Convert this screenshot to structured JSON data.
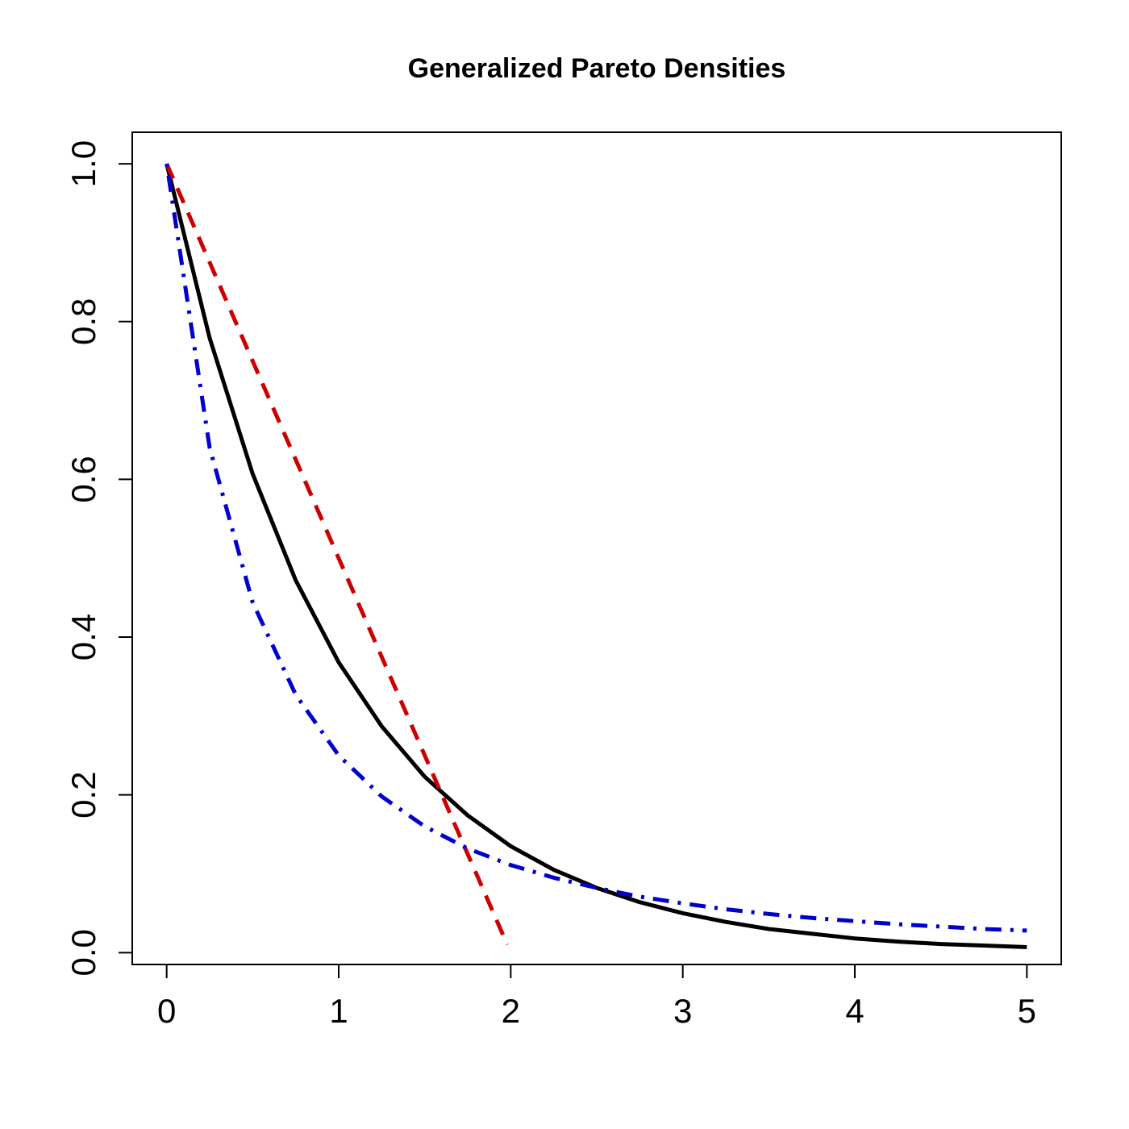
{
  "chart_data": {
    "type": "line",
    "title": "Generalized Pareto Densities",
    "xlabel": "",
    "ylabel": "",
    "xlim": [
      -0.2,
      5.2
    ],
    "ylim": [
      -0.015,
      1.04
    ],
    "x_ticks": [
      0,
      1,
      2,
      3,
      4,
      5
    ],
    "x_tick_labels": [
      "0",
      "1",
      "2",
      "3",
      "4",
      "5"
    ],
    "y_ticks": [
      0.0,
      0.2,
      0.4,
      0.6,
      0.8,
      1.0
    ],
    "y_tick_labels": [
      "0.0",
      "0.2",
      "0.4",
      "0.6",
      "0.8",
      "1.0"
    ],
    "grid": false,
    "legend": "none",
    "series": [
      {
        "style": "solid",
        "color": "#000000",
        "x": [
          0,
          0.25,
          0.5,
          0.75,
          1,
          1.25,
          1.5,
          1.75,
          2,
          2.25,
          2.5,
          2.75,
          3,
          3.25,
          3.5,
          3.75,
          4,
          4.25,
          4.5,
          4.75,
          5
        ],
        "y": [
          1.0,
          0.779,
          0.607,
          0.472,
          0.368,
          0.287,
          0.223,
          0.174,
          0.135,
          0.105,
          0.082,
          0.064,
          0.05,
          0.039,
          0.03,
          0.024,
          0.018,
          0.014,
          0.011,
          0.009,
          0.007
        ]
      },
      {
        "style": "dashed",
        "color": "#cc0000",
        "x": [
          0,
          0.25,
          0.5,
          0.75,
          1,
          1.25,
          1.5,
          1.75,
          1.98
        ],
        "y": [
          1.0,
          0.875,
          0.75,
          0.625,
          0.5,
          0.375,
          0.25,
          0.125,
          0.01
        ]
      },
      {
        "style": "dotdash",
        "color": "#0000cc",
        "x": [
          0,
          0.25,
          0.5,
          0.75,
          1,
          1.25,
          1.5,
          1.75,
          2,
          2.25,
          2.5,
          2.75,
          3,
          3.25,
          3.5,
          3.75,
          4,
          4.25,
          4.5,
          4.75,
          5
        ],
        "y": [
          1.0,
          0.64,
          0.444,
          0.327,
          0.25,
          0.198,
          0.16,
          0.132,
          0.111,
          0.095,
          0.082,
          0.071,
          0.0625,
          0.055,
          0.049,
          0.044,
          0.04,
          0.036,
          0.033,
          0.03,
          0.028
        ]
      }
    ]
  }
}
